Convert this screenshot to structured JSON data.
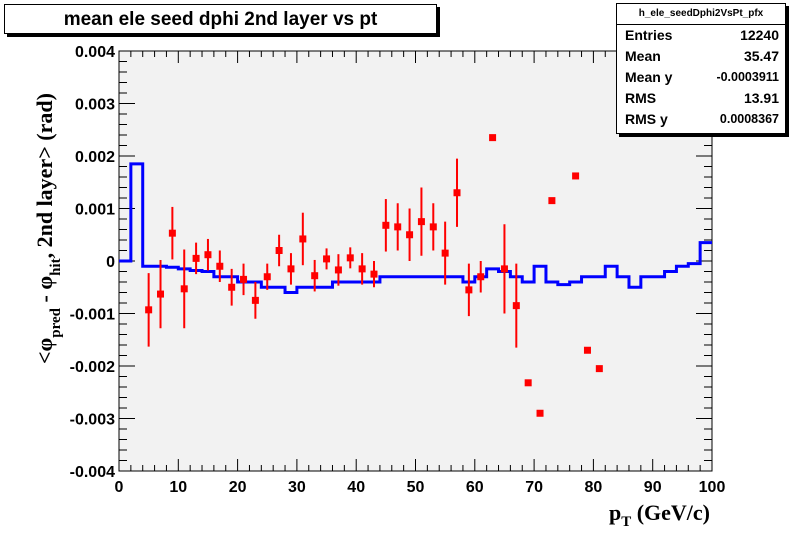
{
  "title": "mean ele seed dphi 2nd layer vs pt",
  "stats": {
    "name": "h_ele_seedDphi2VsPt_pfx",
    "rows": [
      {
        "label": "Entries",
        "value": "12240"
      },
      {
        "label": "Mean",
        "value": "35.47"
      },
      {
        "label": "Mean y",
        "value": "-0.0003911"
      },
      {
        "label": "RMS",
        "value": "13.91"
      },
      {
        "label": "RMS y",
        "value": "0.0008367"
      }
    ]
  },
  "colors": {
    "frame_bg": "#f2f2f2",
    "line": "#0000ff",
    "points": "#ff0000",
    "errors": "#ff0000"
  },
  "chart_data": {
    "type": "line",
    "xlabel_main": "p",
    "xlabel_sub": "T",
    "xlabel_unit": " (GeV/c)",
    "ylabel_parts": {
      "open": "<",
      "phi1": "φ",
      "sub1": "pred",
      "minus": " - ",
      "phi2": "φ",
      "sub2": "hit",
      "rest": ", 2nd layer> (rad)"
    },
    "xlim": [
      0,
      100
    ],
    "ylim": [
      -0.004,
      0.004
    ],
    "x_ticks": [
      0,
      10,
      20,
      30,
      40,
      50,
      60,
      70,
      80,
      90,
      100
    ],
    "x_tick_labels": [
      "0",
      "10",
      "20",
      "30",
      "40",
      "50",
      "60",
      "70",
      "80",
      "90",
      "100"
    ],
    "y_ticks": [
      -0.004,
      -0.003,
      -0.002,
      -0.001,
      0,
      0.001,
      0.002,
      0.003,
      0.004
    ],
    "y_tick_labels": [
      "-0.004",
      "-0.003",
      "-0.002",
      "-0.001",
      "0",
      "0.001",
      "0.002",
      "0.003",
      "0.004"
    ],
    "series": [
      {
        "kind": "step",
        "bin_width": 2,
        "x_start": 0,
        "values": [
          0,
          0.00185,
          -0.0001,
          -0.0001,
          -0.00012,
          -0.00015,
          -0.00018,
          -0.0002,
          -0.0003,
          -0.0003,
          -0.0004,
          -0.0004,
          -0.0005,
          -0.0005,
          -0.0006,
          -0.0005,
          -0.0005,
          -0.0005,
          -0.0004,
          -0.0004,
          -0.0004,
          -0.0004,
          -0.0003,
          -0.0003,
          -0.0003,
          -0.0003,
          -0.0003,
          -0.0003,
          -0.0003,
          -0.0004,
          -0.0003,
          -0.00015,
          -0.0002,
          -0.0003,
          -0.0004,
          -0.0001,
          -0.0004,
          -0.00045,
          -0.0004,
          -0.0003,
          -0.0003,
          -0.0001,
          -0.0003,
          -0.0005,
          -0.0003,
          -0.0003,
          -0.0002,
          -0.0001,
          -5e-05,
          0.00035
        ]
      },
      {
        "kind": "points",
        "x": [
          5,
          7,
          9,
          11,
          13,
          15,
          17,
          19,
          21,
          23,
          25,
          27,
          29,
          31,
          33,
          35,
          37,
          39,
          41,
          43,
          45,
          47,
          49,
          51,
          53,
          55,
          57,
          59,
          61,
          63,
          65,
          67,
          69,
          71,
          73,
          77,
          79,
          81
        ],
        "y": [
          -0.00093,
          -0.00063,
          0.00053,
          -0.00053,
          5e-05,
          0.00012,
          -0.0001,
          -0.0005,
          -0.00035,
          -0.00075,
          -0.0003,
          0.0002,
          -0.00015,
          0.00042,
          -0.00028,
          4e-05,
          -0.00017,
          6e-05,
          -0.00015,
          -0.00025,
          0.00068,
          0.00065,
          0.0005,
          0.00075,
          0.00065,
          0.00015,
          0.0013,
          -0.00055,
          -0.0003,
          0.00235,
          -0.00015,
          -0.00085,
          -0.00232,
          -0.0029,
          0.00115,
          0.00162,
          -0.0017,
          -0.00205
        ],
        "err": [
          0.0007,
          0.00065,
          0.0005,
          0.00075,
          0.0003,
          0.0003,
          0.0003,
          0.00035,
          0.0003,
          0.00035,
          0.00025,
          0.0003,
          0.0003,
          0.0005,
          0.0003,
          0.0002,
          0.0003,
          0.0002,
          0.0003,
          0.00025,
          0.0005,
          0.00045,
          0.0005,
          0.00065,
          0.00045,
          0.0006,
          0.00065,
          0.0005,
          0.0003,
          0,
          0.00085,
          0.0008,
          0,
          0,
          0,
          0,
          0,
          0
        ]
      }
    ]
  }
}
